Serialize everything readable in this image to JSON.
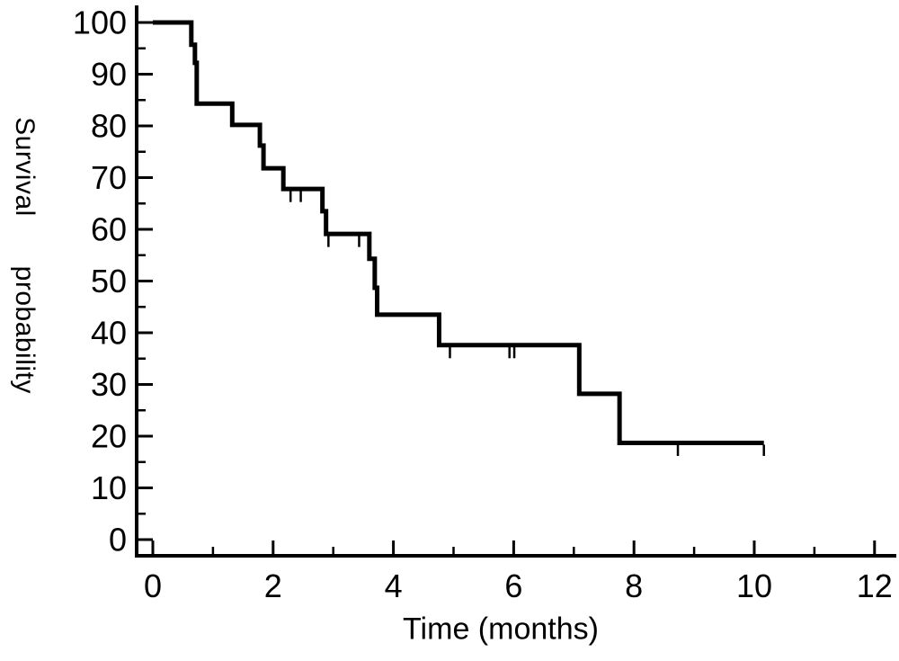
{
  "figure": {
    "background_color": "#ffffff",
    "ink_color": "#000000"
  },
  "chart_data": {
    "type": "line",
    "subtype": "kaplan-meier-step-curve",
    "title": "",
    "xlabel": "Time (months)",
    "ylabel": "Survival probability",
    "xlim": [
      0,
      12.4
    ],
    "ylim": [
      0,
      100
    ],
    "grid": "off",
    "legend": "none",
    "x_major_ticks": [
      0,
      2,
      4,
      6,
      8,
      10,
      12
    ],
    "x_minor_ticks": [
      1,
      3,
      5,
      7,
      9,
      11
    ],
    "y_major_ticks": [
      0,
      10,
      20,
      30,
      40,
      50,
      60,
      70,
      80,
      90,
      100
    ],
    "y_minor_ticks": [
      5,
      15,
      25,
      35,
      45,
      55,
      65,
      75,
      85,
      95
    ],
    "series": [
      {
        "name": "survival",
        "start": {
          "t": 0,
          "s": 100
        },
        "steps": [
          {
            "t": 0.64,
            "s": 95.7
          },
          {
            "t": 0.7,
            "s": 92.2
          },
          {
            "t": 0.73,
            "s": 84.3
          },
          {
            "t": 1.32,
            "s": 80.2
          },
          {
            "t": 1.78,
            "s": 76.2
          },
          {
            "t": 1.84,
            "s": 71.8
          },
          {
            "t": 2.17,
            "s": 67.8
          },
          {
            "t": 2.82,
            "s": 63.5
          },
          {
            "t": 2.88,
            "s": 59.1
          },
          {
            "t": 3.6,
            "s": 54.3
          },
          {
            "t": 3.69,
            "s": 48.7
          },
          {
            "t": 3.73,
            "s": 43.5
          },
          {
            "t": 4.76,
            "s": 37.6
          },
          {
            "t": 7.09,
            "s": 28.2
          },
          {
            "t": 7.76,
            "s": 18.7
          }
        ],
        "end_time": 10.16
      }
    ],
    "censor_marks": [
      {
        "t": 2.29,
        "s": 67.8
      },
      {
        "t": 2.46,
        "s": 67.8
      },
      {
        "t": 2.92,
        "s": 59.1
      },
      {
        "t": 3.43,
        "s": 59.1
      },
      {
        "t": 4.94,
        "s": 37.6
      },
      {
        "t": 5.93,
        "s": 37.6
      },
      {
        "t": 6.01,
        "s": 37.6
      },
      {
        "t": 8.73,
        "s": 18.7
      },
      {
        "t": 10.16,
        "s": 18.7
      }
    ]
  }
}
